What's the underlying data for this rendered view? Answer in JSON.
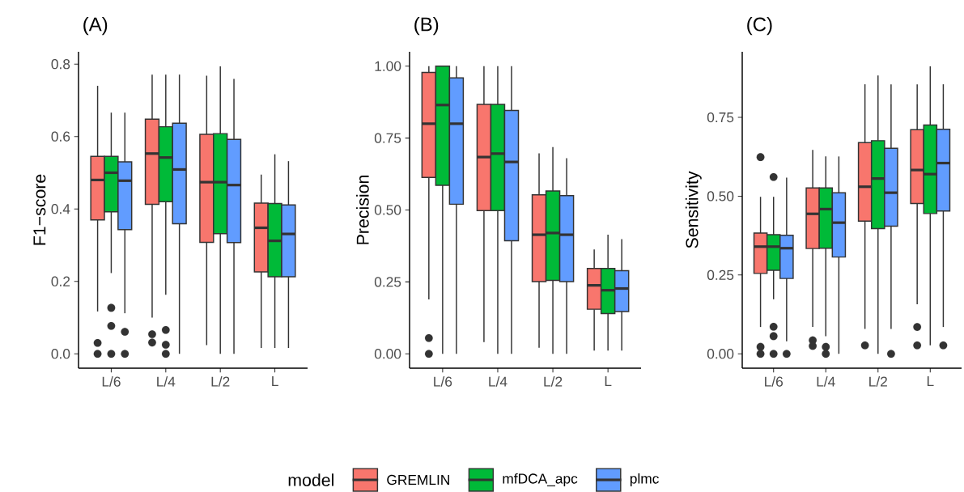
{
  "chart_data": [
    {
      "type": "box",
      "title": "(A)",
      "ylabel": "F1−score",
      "categories": [
        "L/6",
        "L/4",
        "L/2",
        "L"
      ],
      "ylim": [
        -0.0397,
        0.834
      ],
      "yticks": [
        {
          "value": 0,
          "label": "0.0"
        },
        0.2,
        0.4,
        0.6,
        0.8
      ],
      "legend": "bottom",
      "legend_title": "model",
      "series": [
        {
          "name": "GREMLIN",
          "color": "#f8766d",
          "boxes": [
            {
              "low": 0.117,
              "q1": 0.37,
              "median": 0.48,
              "q3": 0.545,
              "high": 0.74,
              "outliers": [
                0.03,
                0
              ]
            },
            {
              "low": 0.1,
              "q1": 0.413,
              "median": 0.553,
              "q3": 0.648,
              "high": 0.771,
              "outliers": [
                0.054,
                0.031
              ]
            },
            {
              "low": 0.024,
              "q1": 0.308,
              "median": 0.474,
              "q3": 0.606,
              "high": 0.768
            },
            {
              "low": 0.016,
              "q1": 0.226,
              "median": 0.348,
              "q3": 0.416,
              "high": 0.495
            }
          ]
        },
        {
          "name": "mfDCA_apc",
          "color": "#00ba38",
          "boxes": [
            {
              "low": 0.223,
              "q1": 0.392,
              "median": 0.5,
              "q3": 0.545,
              "high": 0.666,
              "outliers": [
                0.127,
                0.077,
                0
              ]
            },
            {
              "low": 0.163,
              "q1": 0.42,
              "median": 0.542,
              "q3": 0.627,
              "high": 0.771,
              "outliers": [
                0.066,
                0.025,
                0
              ]
            },
            {
              "low": 0,
              "q1": 0.332,
              "median": 0.474,
              "q3": 0.608,
              "high": 0.794
            },
            {
              "low": 0.016,
              "q1": 0.213,
              "median": 0.312,
              "q3": 0.415,
              "high": 0.551
            }
          ]
        },
        {
          "name": "plmc",
          "color": "#619cff",
          "boxes": [
            {
              "low": 0.112,
              "q1": 0.343,
              "median": 0.478,
              "q3": 0.53,
              "high": 0.666,
              "outliers": [
                0.061,
                0
              ]
            },
            {
              "low": 0,
              "q1": 0.359,
              "median": 0.509,
              "q3": 0.637,
              "high": 0.771
            },
            {
              "low": 0,
              "q1": 0.307,
              "median": 0.466,
              "q3": 0.592,
              "high": 0.759
            },
            {
              "low": 0.016,
              "q1": 0.213,
              "median": 0.331,
              "q3": 0.411,
              "high": 0.532
            }
          ]
        }
      ]
    },
    {
      "type": "box",
      "title": "(B)",
      "ylabel": "Precision",
      "categories": [
        "L/6",
        "L/4",
        "L/2",
        "L"
      ],
      "ylim": [
        -0.05,
        1.05
      ],
      "yticks": [
        {
          "value": 0,
          "label": "0.00"
        },
        0.25,
        {
          "value": 0.5,
          "label": "0.50"
        },
        0.75,
        {
          "value": 1,
          "label": "1.00"
        }
      ],
      "series": [
        {
          "color": "#f8766d",
          "boxes": [
            {
              "low": 0.189,
              "q1": 0.613,
              "median": 0.8,
              "q3": 0.978,
              "high": 1.0,
              "outliers": [
                0.055,
                0
              ]
            },
            {
              "low": 0.041,
              "q1": 0.498,
              "median": 0.684,
              "q3": 0.867,
              "high": 1.0
            },
            {
              "low": 0.021,
              "q1": 0.251,
              "median": 0.414,
              "q3": 0.553,
              "high": 0.697
            },
            {
              "low": 0.011,
              "q1": 0.155,
              "median": 0.238,
              "q3": 0.297,
              "high": 0.363
            }
          ]
        },
        {
          "color": "#00ba38",
          "boxes": [
            {
              "low": 0,
              "q1": 0.586,
              "median": 0.865,
              "q3": 1.0,
              "high": 1.0
            },
            {
              "low": 0,
              "q1": 0.498,
              "median": 0.696,
              "q3": 0.867,
              "high": 1.0
            },
            {
              "low": 0,
              "q1": 0.255,
              "median": 0.42,
              "q3": 0.566,
              "high": 0.719
            },
            {
              "low": 0.011,
              "q1": 0.14,
              "median": 0.221,
              "q3": 0.297,
              "high": 0.414
            }
          ]
        },
        {
          "color": "#619cff",
          "boxes": [
            {
              "low": 0,
              "q1": 0.52,
              "median": 0.8,
              "q3": 0.959,
              "high": 1.0
            },
            {
              "low": 0,
              "q1": 0.393,
              "median": 0.667,
              "q3": 0.846,
              "high": 1.0
            },
            {
              "low": 0,
              "q1": 0.251,
              "median": 0.414,
              "q3": 0.55,
              "high": 0.68
            },
            {
              "low": 0.011,
              "q1": 0.147,
              "median": 0.227,
              "q3": 0.289,
              "high": 0.399
            }
          ]
        }
      ]
    },
    {
      "type": "box",
      "title": "(C)",
      "ylabel": "Sensitivity",
      "categories": [
        "L/6",
        "L/4",
        "L/2",
        "L"
      ],
      "ylim": [
        -0.0456,
        0.958
      ],
      "yticks": [
        {
          "value": 0,
          "label": "0.00"
        },
        0.25,
        {
          "value": 0.5,
          "label": "0.50"
        },
        0.75
      ],
      "series": [
        {
          "color": "#f8766d",
          "boxes": [
            {
              "low": 0.085,
              "q1": 0.255,
              "median": 0.34,
              "q3": 0.383,
              "high": 0.498,
              "outliers": [
                0.624,
                0.022,
                0
              ]
            },
            {
              "low": 0.085,
              "q1": 0.334,
              "median": 0.444,
              "q3": 0.526,
              "high": 0.647,
              "outliers": [
                0.043,
                0.025
              ]
            },
            {
              "low": 0.079,
              "q1": 0.421,
              "median": 0.53,
              "q3": 0.67,
              "high": 0.855,
              "outliers": [
                0.027
              ]
            },
            {
              "low": 0.157,
              "q1": 0.477,
              "median": 0.583,
              "q3": 0.711,
              "high": 0.855,
              "outliers": [
                0.085,
                0.027
              ]
            }
          ]
        },
        {
          "color": "#00ba38",
          "boxes": [
            {
              "low": 0.173,
              "q1": 0.265,
              "median": 0.34,
              "q3": 0.378,
              "high": 0.498,
              "outliers": [
                0.561,
                0.086,
                0.056,
                0
              ]
            },
            {
              "low": 0.056,
              "q1": 0.335,
              "median": 0.459,
              "q3": 0.526,
              "high": 0.626,
              "outliers": [
                0.022,
                0
              ]
            },
            {
              "low": 0,
              "q1": 0.397,
              "median": 0.556,
              "q3": 0.676,
              "high": 0.883
            },
            {
              "low": 0.027,
              "q1": 0.445,
              "median": 0.57,
              "q3": 0.726,
              "high": 0.912
            }
          ]
        },
        {
          "color": "#619cff",
          "boxes": [
            {
              "low": 0.04,
              "q1": 0.239,
              "median": 0.335,
              "q3": 0.376,
              "high": 0.559,
              "outliers": [
                0
              ]
            },
            {
              "low": 0,
              "q1": 0.307,
              "median": 0.416,
              "q3": 0.511,
              "high": 0.626
            },
            {
              "low": 0.079,
              "q1": 0.405,
              "median": 0.511,
              "q3": 0.652,
              "high": 0.855,
              "outliers": [
                0
              ]
            },
            {
              "low": 0.085,
              "q1": 0.453,
              "median": 0.605,
              "q3": 0.712,
              "high": 0.855,
              "outliers": [
                0.027
              ]
            }
          ]
        }
      ]
    }
  ]
}
